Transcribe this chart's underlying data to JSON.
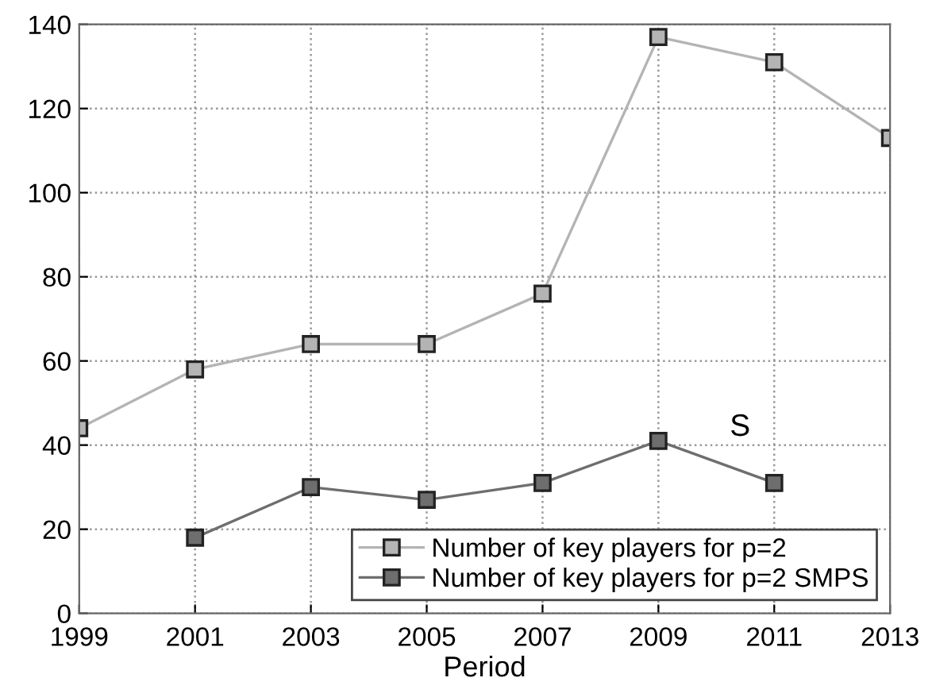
{
  "chart_data": {
    "type": "line",
    "xlabel": "Period",
    "x": [
      1999,
      2001,
      2003,
      2005,
      2007,
      2009,
      2011,
      2013
    ],
    "series": [
      {
        "name": "Number of key players for p=2",
        "color": "#b4b4b4",
        "values": [
          44,
          58,
          64,
          64,
          76,
          137,
          131,
          113
        ]
      },
      {
        "name": "Number of key players for p=2 SMPS",
        "color": "#6e6e6e",
        "values": [
          null,
          18,
          30,
          27,
          31,
          41,
          31,
          null
        ]
      }
    ],
    "xlim": [
      1999,
      2013
    ],
    "xticks": [
      1999,
      2001,
      2003,
      2005,
      2007,
      2009,
      2011,
      2013
    ],
    "ylim": [
      0,
      140
    ],
    "yticks": [
      0,
      20,
      40,
      60,
      80,
      100,
      120,
      140
    ],
    "grid": true,
    "legend": "bottom right",
    "marker": "square",
    "line_style": "solid",
    "annotations": [
      "S"
    ]
  }
}
